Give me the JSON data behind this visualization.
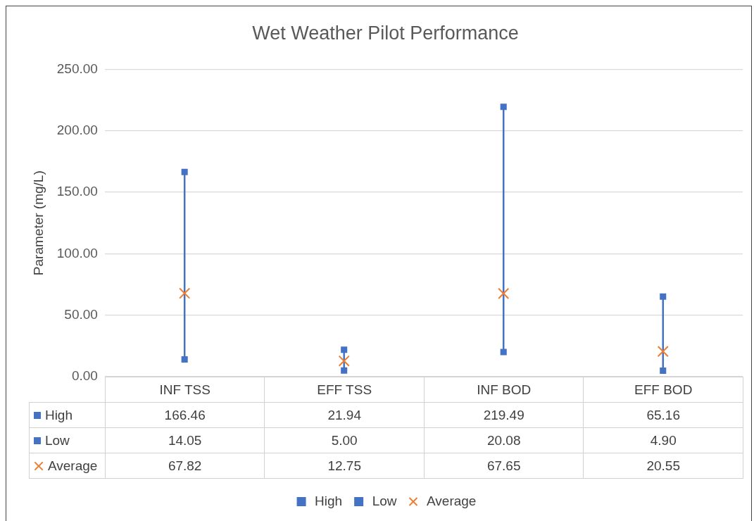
{
  "chart_data": {
    "type": "scatter",
    "title": "Wet Weather Pilot Performance",
    "ylabel": "Parameter (mg/L)",
    "categories": [
      "INF TSS",
      "EFF TSS",
      "INF BOD",
      "EFF BOD"
    ],
    "series": [
      {
        "name": "High",
        "color": "#4472c4",
        "marker": "square",
        "values": [
          166.46,
          21.94,
          219.49,
          65.16
        ],
        "value_labels": [
          "166.46",
          "21.94",
          "219.49",
          "65.16"
        ]
      },
      {
        "name": "Low",
        "color": "#4472c4",
        "marker": "square",
        "values": [
          14.05,
          5.0,
          20.08,
          4.9
        ],
        "value_labels": [
          "14.05",
          "5.00",
          "20.08",
          "4.90"
        ]
      },
      {
        "name": "Average",
        "color": "#ed7d31",
        "marker": "cross",
        "values": [
          67.82,
          12.75,
          67.65,
          20.55
        ],
        "value_labels": [
          "67.82",
          "12.75",
          "67.65",
          "20.55"
        ]
      }
    ],
    "ylim": [
      0,
      250
    ],
    "yticks": [
      {
        "value": 0,
        "label": "0.00"
      },
      {
        "value": 50,
        "label": "50.00"
      },
      {
        "value": 100,
        "label": "100.00"
      },
      {
        "value": 150,
        "label": "150.00"
      },
      {
        "value": 200,
        "label": "200.00"
      },
      {
        "value": 250,
        "label": "250.00"
      }
    ],
    "grid": "y",
    "legend": "bottom"
  }
}
